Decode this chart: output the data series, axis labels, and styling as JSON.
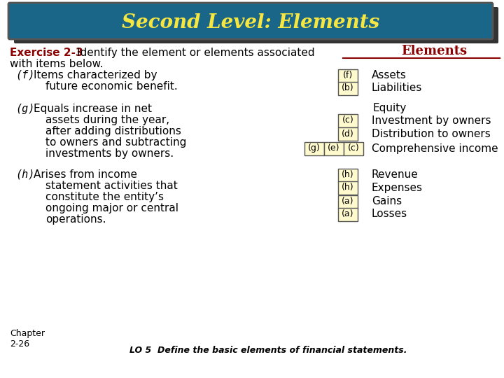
{
  "title": "Second Level: Elements",
  "title_bg_color": "#1a6688",
  "title_text_color": "#f5e642",
  "exercise_label": "Exercise 2-3",
  "exercise_label_color": "#8b0000",
  "elements_heading": "Elements",
  "elements_heading_color": "#8b0000",
  "right_rows": [
    {
      "boxes": [
        "(f)"
      ],
      "element": "Assets"
    },
    {
      "boxes": [
        "(b)"
      ],
      "element": "Liabilities"
    },
    {
      "boxes": [],
      "element": "Equity"
    },
    {
      "boxes": [
        "(c)"
      ],
      "element": "Investment by owners"
    },
    {
      "boxes": [
        "(d)"
      ],
      "element": "Distribution to owners"
    },
    {
      "boxes": [
        "(g)",
        "(e)",
        "(c)"
      ],
      "element": "Comprehensive income"
    },
    {
      "boxes": [
        "(h)"
      ],
      "element": "Revenue"
    },
    {
      "boxes": [
        "(h)"
      ],
      "element": "Expenses"
    },
    {
      "boxes": [
        "(a)"
      ],
      "element": "Gains"
    },
    {
      "boxes": [
        "(a)"
      ],
      "element": "Losses"
    }
  ],
  "box_fill_color": "#fffacd",
  "box_edge_color": "#555555",
  "box_text_color": "#000000",
  "chapter_label": "Chapter\n2-26",
  "footer_text": "LO 5  Define the basic elements of financial statements.",
  "bg_color": "#ffffff",
  "text_color": "#000000",
  "shadow_color": "#333333"
}
